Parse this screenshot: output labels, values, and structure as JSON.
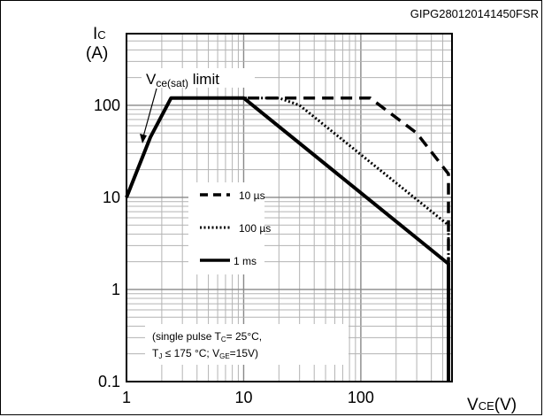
{
  "chart_data": {
    "type": "line",
    "id_code": "GIPG280120141450FSR",
    "x_scale": "log",
    "y_scale": "log",
    "xlim": [
      1,
      600
    ],
    "ylim": [
      0.1,
      600
    ],
    "grid": true,
    "x_ticks": [
      1,
      10,
      100
    ],
    "x_tick_labels": [
      "1",
      "10",
      "100"
    ],
    "y_ticks": [
      0.1,
      1,
      10,
      100
    ],
    "y_tick_labels": [
      "0.1",
      "1",
      "10",
      "100"
    ],
    "ylabel_main": "I",
    "ylabel_sub": "C",
    "ylabel_unit": "(A)",
    "xlabel_main": "V",
    "xlabel_sub": "CE",
    "xlabel_unit": "(V)",
    "limit_label_main": "V",
    "limit_label_sub": "ce(sat)",
    "limit_label_rest": " limit",
    "series": [
      {
        "name": "10 µs",
        "style": "dashed",
        "x": [
          1,
          1.6,
          2.4,
          10,
          20,
          80,
          120,
          300,
          560,
          560
        ],
        "y": [
          10,
          45,
          120,
          120,
          120,
          120,
          120,
          50,
          18,
          0.1
        ]
      },
      {
        "name": "100 µs",
        "style": "dotted",
        "x": [
          1,
          1.6,
          2.4,
          10,
          20,
          30,
          560,
          560
        ],
        "y": [
          10,
          45,
          120,
          120,
          120,
          100,
          5,
          0.1
        ]
      },
      {
        "name": "1 ms",
        "style": "solid",
        "x": [
          1,
          1.6,
          2.4,
          10,
          560,
          560
        ],
        "y": [
          10,
          45,
          120,
          120,
          1.9,
          0.1
        ]
      }
    ],
    "note_line1_a": "(single pulse T",
    "note_line1_sub": "C",
    "note_line1_b": "= 25",
    "note_line1_c": "°C,",
    "note_line2_a": "T",
    "note_line2_sub": "J",
    "note_line2_b": " ≤ 175 °C; V",
    "note_line2_sub2": "GE",
    "note_line2_c": "=15V)"
  }
}
